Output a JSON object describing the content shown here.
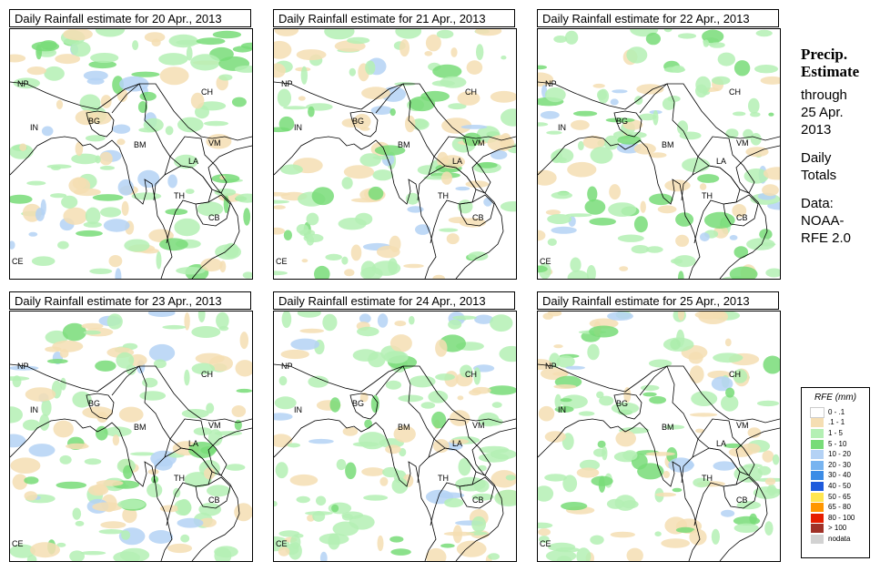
{
  "panels": [
    {
      "title": "Daily Rainfall estimate for  20 Apr., 2013"
    },
    {
      "title": "Daily Rainfall estimate for  21 Apr., 2013"
    },
    {
      "title": "Daily Rainfall estimate for  22 Apr., 2013"
    },
    {
      "title": "Daily Rainfall estimate for  23 Apr., 2013"
    },
    {
      "title": "Daily Rainfall estimate for  24 Apr., 2013"
    },
    {
      "title": "Daily Rainfall estimate for  25 Apr., 2013"
    }
  ],
  "country_labels": {
    "np": "NP",
    "in": "IN",
    "bg": "BG",
    "bm": "BM",
    "ch": "CH",
    "vm": "VM",
    "la": "LA",
    "th": "TH",
    "cb": "CB",
    "ce": "CE"
  },
  "side": {
    "title_line1": "Precip.",
    "title_line2": "Estimate",
    "through": "through",
    "date_line1": "25 Apr.",
    "date_line2": "2013",
    "daily": "Daily",
    "totals": "Totals",
    "data_label": "Data:",
    "source_line1": "NOAA-",
    "source_line2": "RFE 2.0"
  },
  "legend": {
    "title": "RFE (mm)",
    "items": [
      {
        "label": "0 - .1",
        "color": "#ffffff"
      },
      {
        "label": ".1 - 1",
        "color": "#f5deb3"
      },
      {
        "label": "1 - 5",
        "color": "#b4f0b4"
      },
      {
        "label": "5 - 10",
        "color": "#78dc78"
      },
      {
        "label": "10 - 20",
        "color": "#b4d2f5"
      },
      {
        "label": "20 - 30",
        "color": "#78b4f0"
      },
      {
        "label": "30 - 40",
        "color": "#3c8ce6"
      },
      {
        "label": "40 - 50",
        "color": "#1e5adc"
      },
      {
        "label": "50 - 65",
        "color": "#ffe650"
      },
      {
        "label": "65 - 80",
        "color": "#ff9600"
      },
      {
        "label": "80 - 100",
        "color": "#e61e00"
      },
      {
        "label": "> 100",
        "color": "#a03228"
      },
      {
        "label": "nodata",
        "color": "#d2d2d2"
      }
    ]
  }
}
